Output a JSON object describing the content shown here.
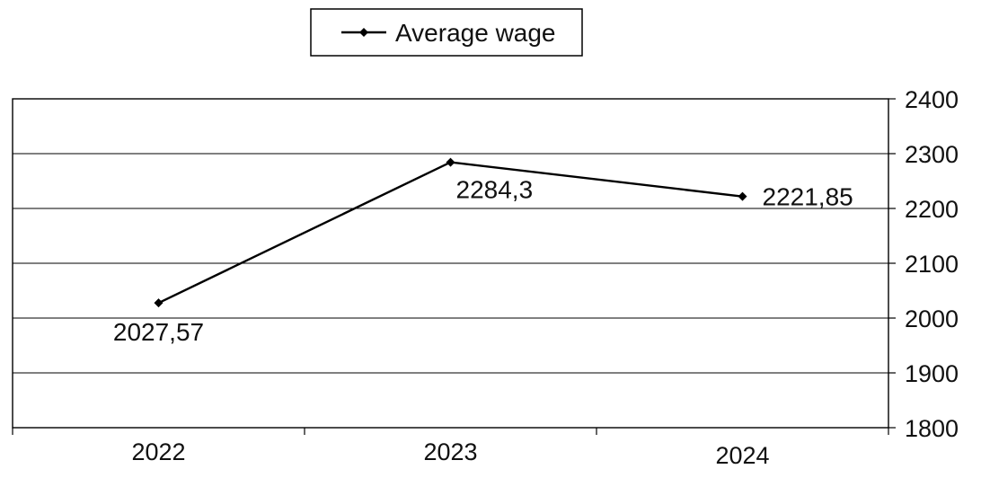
{
  "chart_data": {
    "type": "line",
    "categories": [
      "2022",
      "2023",
      "2024"
    ],
    "series": [
      {
        "name": "Average wage",
        "values": [
          2027.57,
          2284.3,
          2221.85
        ],
        "data_labels": [
          "2027,57",
          "2284,3",
          "2221,85"
        ],
        "color": "#000000",
        "marker": "diamond"
      }
    ],
    "yticks": [
      "1800",
      "1900",
      "2000",
      "2100",
      "2200",
      "2300",
      "2400"
    ],
    "ylim": [
      1800,
      2400
    ],
    "y_axis_side": "right",
    "grid": true,
    "legend": {
      "position": "top-center",
      "entries": [
        "Average wage"
      ]
    }
  }
}
